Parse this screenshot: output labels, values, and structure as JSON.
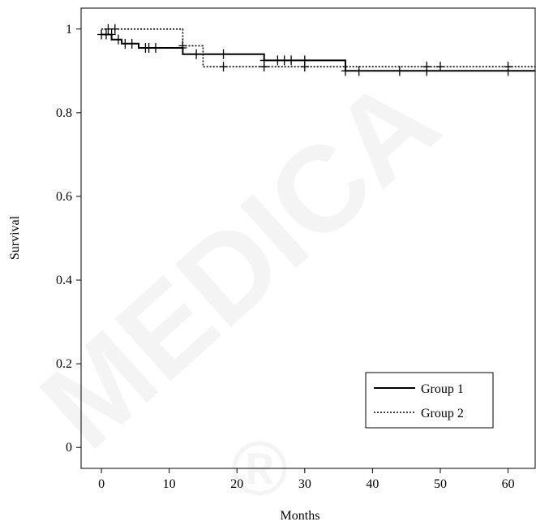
{
  "chart_data": {
    "type": "line",
    "xlabel": "Months",
    "ylabel": "Survival",
    "xlim": [
      -3,
      64
    ],
    "ylim": [
      -0.05,
      1.05
    ],
    "x_ticks": [
      0,
      10,
      20,
      30,
      40,
      50,
      60
    ],
    "y_ticks": [
      0,
      0.2,
      0.4,
      0.6,
      0.8,
      1
    ],
    "y_tick_labels": [
      "0",
      "0.2",
      "0.4",
      "0.6",
      "0.8",
      "1"
    ],
    "legend_position": "bottom-right",
    "series": [
      {
        "name": "Group 1",
        "line_style": "solid",
        "steps": [
          [
            0,
            0.987
          ],
          [
            1.5,
            0.987
          ],
          [
            1.5,
            0.975
          ],
          [
            3,
            0.975
          ],
          [
            3,
            0.965
          ],
          [
            5.5,
            0.965
          ],
          [
            5.5,
            0.955
          ],
          [
            12,
            0.955
          ],
          [
            12,
            0.94
          ],
          [
            24,
            0.94
          ],
          [
            24,
            0.925
          ],
          [
            36,
            0.925
          ],
          [
            36,
            0.9
          ],
          [
            64,
            0.9
          ]
        ],
        "censored": [
          [
            0,
            0.987
          ],
          [
            0.7,
            0.987
          ],
          [
            1.5,
            0.987
          ],
          [
            2.5,
            0.975
          ],
          [
            3.5,
            0.965
          ],
          [
            4.5,
            0.965
          ],
          [
            6.5,
            0.955
          ],
          [
            7,
            0.955
          ],
          [
            8,
            0.955
          ],
          [
            12,
            0.955
          ],
          [
            14,
            0.94
          ],
          [
            18,
            0.94
          ],
          [
            24,
            0.925
          ],
          [
            26,
            0.925
          ],
          [
            27,
            0.925
          ],
          [
            28,
            0.925
          ],
          [
            30,
            0.925
          ],
          [
            36,
            0.9
          ],
          [
            38,
            0.9
          ],
          [
            44,
            0.9
          ],
          [
            48,
            0.9
          ],
          [
            60,
            0.9
          ]
        ]
      },
      {
        "name": "Group 2",
        "line_style": "dotted",
        "steps": [
          [
            0,
            1.0
          ],
          [
            12,
            1.0
          ],
          [
            12,
            0.96
          ],
          [
            15,
            0.96
          ],
          [
            15,
            0.91
          ],
          [
            64,
            0.91
          ]
        ],
        "censored": [
          [
            1,
            1.0
          ],
          [
            2,
            1.0
          ],
          [
            12,
            0.96
          ],
          [
            18,
            0.91
          ],
          [
            24,
            0.91
          ],
          [
            30,
            0.91
          ],
          [
            48,
            0.91
          ],
          [
            50,
            0.91
          ],
          [
            60,
            0.91
          ]
        ]
      }
    ]
  },
  "watermark": {
    "text": "MEDICA",
    "symbol": "®"
  }
}
